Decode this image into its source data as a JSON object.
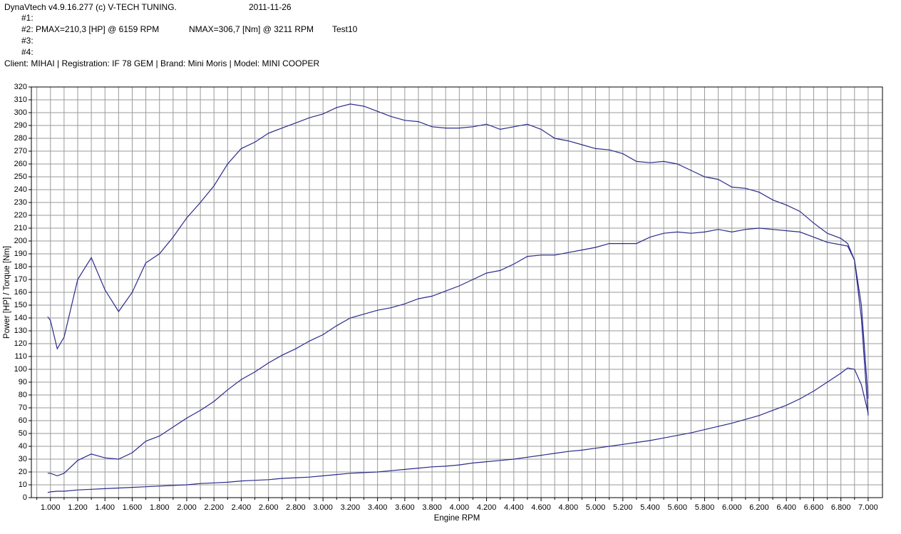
{
  "header": {
    "app": "DynaVtech v4.9.16.277 (c) V-TECH TUNING.",
    "date": "2011-11-26",
    "run1": "#1:",
    "run2": "#2: PMAX=210,3 [HP] @ 6159 RPM",
    "run2_torque": "NMAX=306,7 [Nm] @ 3211 RPM",
    "run2_name": "Test10",
    "run3": "#3:",
    "run4": "#4:",
    "client": "Client: MIHAI | Registration: IF 78 GEM | Brand: Mini Moris | Model: MINI COOPER"
  },
  "chart_data": {
    "type": "line",
    "x_label": "Engine RPM",
    "y_label": "Power [HP] / Torque [Nm]",
    "x": [
      980,
      1000,
      1050,
      1100,
      1200,
      1300,
      1400,
      1500,
      1600,
      1700,
      1800,
      1900,
      2000,
      2100,
      2200,
      2300,
      2400,
      2500,
      2600,
      2700,
      2800,
      2900,
      3000,
      3100,
      3200,
      3300,
      3400,
      3500,
      3600,
      3700,
      3800,
      3900,
      4000,
      4100,
      4200,
      4300,
      4400,
      4500,
      4600,
      4700,
      4800,
      4900,
      5000,
      5100,
      5200,
      5300,
      5400,
      5500,
      5600,
      5700,
      5800,
      5900,
      6000,
      6100,
      6200,
      6300,
      6400,
      6500,
      6600,
      6700,
      6800,
      6850,
      6900,
      6950,
      7000
    ],
    "series": [
      {
        "color": "#2b2b8c",
        "values": [
          141,
          138,
          116,
          125,
          170,
          187,
          162,
          145,
          160,
          183,
          190,
          203,
          218,
          230,
          243,
          260,
          272,
          277,
          284,
          288,
          292,
          296,
          299,
          304,
          306.7,
          305,
          301,
          297,
          294,
          293,
          289,
          288,
          288,
          289,
          291,
          287,
          289,
          291,
          287,
          280,
          278,
          275,
          272,
          271,
          268,
          262,
          261,
          262,
          260,
          255,
          250,
          248,
          242,
          241,
          238,
          232,
          228,
          223,
          214,
          206,
          202,
          198,
          185,
          150,
          77
        ]
      },
      {
        "color": "#2b2b8c",
        "values": [
          19,
          19,
          17,
          19,
          29,
          34,
          31,
          30,
          35,
          44,
          48,
          55,
          62,
          68,
          75,
          84,
          92,
          98,
          105,
          111,
          116,
          122,
          127,
          134,
          140,
          143,
          146,
          148,
          151,
          155,
          157,
          161,
          165,
          170,
          175,
          177,
          182,
          188,
          189,
          189,
          191,
          193,
          195,
          198,
          198,
          198,
          203,
          206,
          207,
          206,
          207,
          209,
          207,
          209,
          210,
          209,
          208,
          207,
          203,
          199,
          197,
          196,
          185,
          140,
          64
        ]
      },
      {
        "color": "#2b2b8c",
        "values": [
          4,
          4.5,
          5,
          5,
          6,
          6.5,
          7,
          7.5,
          8,
          8.5,
          9,
          9.5,
          10,
          11,
          11.5,
          12,
          13,
          13.5,
          14,
          15,
          15.5,
          16,
          17,
          18,
          19,
          19.5,
          20,
          21,
          22,
          23,
          24,
          24.5,
          25.5,
          27,
          28,
          29,
          30,
          31.5,
          33,
          34.5,
          36,
          37,
          38.5,
          40,
          41.5,
          43,
          44.5,
          46.5,
          48.5,
          50.5,
          53,
          55.5,
          58,
          61,
          64,
          68,
          72,
          77,
          83,
          90,
          97,
          101,
          100,
          88,
          66
        ]
      }
    ],
    "xlim": [
      860,
      7105
    ],
    "ylim": [
      0,
      320
    ],
    "xticks": [
      {
        "value": 1000,
        "label": "1.000"
      },
      {
        "value": 1200,
        "label": "1.200"
      },
      {
        "value": 1400,
        "label": "1.400"
      },
      {
        "value": 1600,
        "label": "1.600"
      },
      {
        "value": 1800,
        "label": "1.800"
      },
      {
        "value": 2000,
        "label": "2.000"
      },
      {
        "value": 2200,
        "label": "2.200"
      },
      {
        "value": 2400,
        "label": "2.400"
      },
      {
        "value": 2600,
        "label": "2.600"
      },
      {
        "value": 2800,
        "label": "2.800"
      },
      {
        "value": 3000,
        "label": "3.000"
      },
      {
        "value": 3200,
        "label": "3.200"
      },
      {
        "value": 3400,
        "label": "3.400"
      },
      {
        "value": 3600,
        "label": "3.600"
      },
      {
        "value": 3800,
        "label": "3.800"
      },
      {
        "value": 4000,
        "label": "4.000"
      },
      {
        "value": 4200,
        "label": "4.200"
      },
      {
        "value": 4400,
        "label": "4.400"
      },
      {
        "value": 4600,
        "label": "4.600"
      },
      {
        "value": 4800,
        "label": "4.800"
      },
      {
        "value": 5000,
        "label": "5.000"
      },
      {
        "value": 5200,
        "label": "5.200"
      },
      {
        "value": 5400,
        "label": "5.400"
      },
      {
        "value": 5600,
        "label": "5.600"
      },
      {
        "value": 5800,
        "label": "5.800"
      },
      {
        "value": 6000,
        "label": "6.000"
      },
      {
        "value": 6200,
        "label": "6.200"
      },
      {
        "value": 6400,
        "label": "6.400"
      },
      {
        "value": 6600,
        "label": "6.600"
      },
      {
        "value": 6800,
        "label": "6.800"
      },
      {
        "value": 7000,
        "label": "7.000"
      }
    ],
    "xminorticks": [
      900,
      1100,
      1300,
      1500,
      1700,
      1900,
      2100,
      2300,
      2500,
      2700,
      2900,
      3100,
      3300,
      3500,
      3700,
      3900,
      4100,
      4300,
      4500,
      4700,
      4900,
      5100,
      5300,
      5500,
      5700,
      5900,
      6100,
      6300,
      6500,
      6700,
      6900
    ],
    "yticks": [
      0,
      10,
      20,
      30,
      40,
      50,
      60,
      70,
      80,
      90,
      100,
      110,
      120,
      130,
      140,
      150,
      160,
      170,
      180,
      190,
      200,
      210,
      220,
      230,
      240,
      250,
      260,
      270,
      280,
      290,
      300,
      310,
      320
    ],
    "grid": true
  }
}
